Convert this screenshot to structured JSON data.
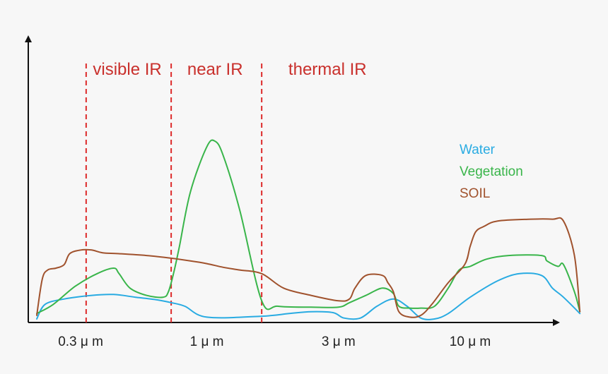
{
  "chart_data": {
    "type": "line",
    "title": "",
    "xlabel": "",
    "ylabel": "",
    "xlim": [
      0,
      100
    ],
    "ylim": [
      0,
      100
    ],
    "grid": false,
    "legend_position": "right",
    "x_ticks": [
      {
        "x": 8,
        "label": "0.3 μ m"
      },
      {
        "x": 31,
        "label": "1 μ m"
      },
      {
        "x": 55,
        "label": "3 μ m"
      },
      {
        "x": 79,
        "label": "10 μ m"
      }
    ],
    "region_boundaries": [
      9,
      24.5,
      41
    ],
    "regions": [
      {
        "label": "visible IR",
        "x": 16.5
      },
      {
        "label": "near IR",
        "x": 32.5
      },
      {
        "label": "thermal IR",
        "x": 53
      }
    ],
    "series": [
      {
        "name": "Water",
        "color": "#29abe2",
        "x": [
          0,
          1.5,
          5,
          10,
          14,
          18,
          22,
          24.5,
          27,
          31,
          41,
          46,
          50,
          54,
          56,
          59,
          62,
          65,
          67.5,
          70,
          72.5,
          75,
          79,
          84,
          88,
          92,
          94,
          96,
          99
        ],
        "y": [
          0,
          8,
          11,
          13,
          13.5,
          12,
          10.5,
          9,
          7,
          1,
          1.5,
          3,
          4,
          3.5,
          0.5,
          0.5,
          7,
          11,
          7,
          0.5,
          0,
          3,
          12,
          21,
          25,
          24,
          17,
          12,
          3
        ]
      },
      {
        "name": "Vegetation",
        "color": "#39b54a",
        "x": [
          0,
          3,
          7,
          11,
          14,
          15,
          17,
          20,
          23,
          24,
          25,
          26,
          28,
          31,
          32.5,
          34,
          37,
          41,
          44,
          50,
          55,
          57,
          60,
          63,
          65,
          66,
          68,
          70,
          72.5,
          75,
          77,
          79,
          82,
          86,
          92,
          93,
          95,
          96,
          98,
          99
        ],
        "y": [
          3,
          8,
          18,
          25,
          28,
          25,
          17,
          13,
          12,
          15,
          26,
          40,
          70,
          95,
          98,
          90,
          60,
          10,
          7,
          6.5,
          6.5,
          9,
          13,
          17,
          14,
          7,
          6,
          6,
          7,
          17,
          27,
          29,
          33,
          35,
          35,
          32,
          29,
          30,
          15,
          4
        ]
      },
      {
        "name": "SOIL",
        "color": "#a0522d",
        "x": [
          0,
          1,
          2,
          3.5,
          5,
          6,
          8,
          10,
          12,
          15,
          20,
          24.5,
          28,
          31,
          34,
          37,
          41,
          45,
          50,
          55,
          57,
          58,
          60,
          63,
          64,
          65,
          66,
          68,
          70,
          72,
          75,
          78,
          79,
          80,
          81.5,
          84,
          90,
          94,
          96,
          98,
          99
        ],
        "y": [
          2,
          22,
          27,
          28,
          30,
          36,
          38,
          38,
          36.5,
          36,
          35,
          33.5,
          32,
          30.5,
          28.5,
          27,
          25,
          17,
          13,
          10,
          11,
          17,
          24,
          24,
          20,
          15,
          4,
          1,
          2,
          8,
          20,
          30,
          40,
          48,
          51,
          54,
          55,
          55,
          54,
          35,
          4
        ]
      }
    ]
  }
}
